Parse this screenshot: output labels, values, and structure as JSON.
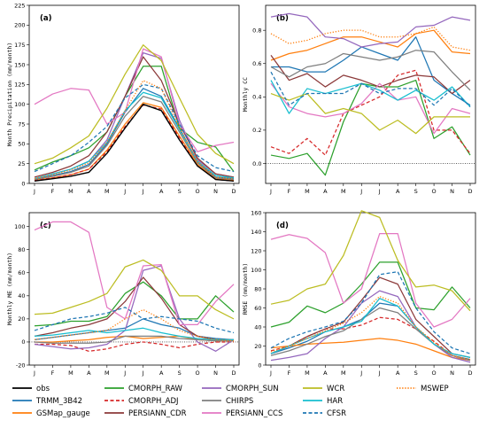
{
  "chart_data": [
    {
      "type": "line",
      "panel_label": "(a)",
      "ylabel": "Month Precipitation (mm/month)",
      "ylim": [
        0,
        225
      ],
      "yticks": [
        0,
        25,
        50,
        75,
        100,
        125,
        150,
        175,
        200,
        225
      ],
      "categories": [
        "J",
        "F",
        "M",
        "A",
        "M",
        "J",
        "J",
        "A",
        "S",
        "O",
        "N",
        "D"
      ],
      "series": [
        {
          "name": "obs",
          "values": [
            3,
            6,
            9,
            14,
            38,
            70,
            100,
            92,
            55,
            22,
            5,
            3
          ]
        },
        {
          "name": "TRMM_3B42",
          "values": [
            5,
            10,
            15,
            24,
            50,
            90,
            120,
            110,
            70,
            28,
            8,
            6
          ]
        },
        {
          "name": "GSMap_gauge",
          "values": [
            4,
            7,
            11,
            18,
            42,
            75,
            102,
            96,
            60,
            24,
            6,
            4
          ]
        },
        {
          "name": "CMORPH_RAW",
          "values": [
            17,
            27,
            35,
            45,
            65,
            110,
            148,
            148,
            70,
            52,
            46,
            15
          ]
        },
        {
          "name": "CMORPH_ADJ",
          "values": [
            4,
            7,
            11,
            18,
            40,
            72,
            99,
            94,
            58,
            22,
            5,
            3
          ]
        },
        {
          "name": "CMORPH_SUN",
          "values": [
            6,
            12,
            18,
            28,
            55,
            110,
            165,
            158,
            80,
            30,
            12,
            8
          ]
        },
        {
          "name": "PERSIANN_CDR",
          "values": [
            8,
            14,
            22,
            35,
            65,
            110,
            160,
            130,
            75,
            32,
            12,
            8
          ]
        },
        {
          "name": "PERSIANN_CCS",
          "values": [
            100,
            113,
            120,
            118,
            75,
            90,
            170,
            160,
            75,
            40,
            48,
            52
          ]
        },
        {
          "name": "CHIRPS",
          "values": [
            5,
            9,
            14,
            22,
            48,
            85,
            110,
            103,
            65,
            26,
            7,
            5
          ]
        },
        {
          "name": "HAR",
          "values": [
            6,
            12,
            18,
            28,
            52,
            92,
            115,
            108,
            68,
            28,
            10,
            7
          ]
        },
        {
          "name": "WCR",
          "values": [
            25,
            32,
            45,
            60,
            95,
            138,
            175,
            155,
            108,
            62,
            38,
            25
          ]
        },
        {
          "name": "CFSR",
          "values": [
            15,
            25,
            35,
            52,
            72,
            108,
            125,
            120,
            75,
            35,
            20,
            15
          ]
        },
        {
          "name": "MSWEP",
          "values": [
            6,
            11,
            17,
            26,
            52,
            92,
            130,
            120,
            70,
            28,
            8,
            6
          ]
        }
      ]
    },
    {
      "type": "line",
      "panel_label": "(b)",
      "ylabel": "Monthly CC",
      "ylim": [
        -0.12,
        0.95
      ],
      "yticks": [
        0.0,
        0.2,
        0.4,
        0.6,
        0.8
      ],
      "reference_line": 0,
      "categories": [
        "J",
        "F",
        "M",
        "A",
        "M",
        "J",
        "J",
        "A",
        "S",
        "O",
        "N",
        "D"
      ],
      "series": [
        {
          "name": "TRMM_3B42",
          "values": [
            0.58,
            0.58,
            0.55,
            0.55,
            0.62,
            0.7,
            0.66,
            0.62,
            0.76,
            0.5,
            0.42,
            0.35
          ]
        },
        {
          "name": "GSMap_gauge",
          "values": [
            0.62,
            0.66,
            0.68,
            0.72,
            0.76,
            0.76,
            0.73,
            0.7,
            0.78,
            0.8,
            0.67,
            0.66
          ]
        },
        {
          "name": "CMORPH_RAW",
          "values": [
            0.05,
            0.03,
            0.06,
            -0.07,
            0.25,
            0.48,
            0.46,
            0.46,
            0.5,
            0.15,
            0.22,
            0.05
          ]
        },
        {
          "name": "CMORPH_ADJ",
          "values": [
            0.1,
            0.06,
            0.15,
            0.05,
            0.3,
            0.35,
            0.4,
            0.53,
            0.56,
            0.2,
            0.2,
            0.06
          ]
        },
        {
          "name": "CMORPH_SUN",
          "values": [
            0.88,
            0.9,
            0.88,
            0.76,
            0.75,
            0.7,
            0.72,
            0.73,
            0.82,
            0.83,
            0.88,
            0.86
          ]
        },
        {
          "name": "PERSIANN_CDR",
          "values": [
            0.65,
            0.5,
            0.54,
            0.46,
            0.53,
            0.5,
            0.46,
            0.5,
            0.53,
            0.52,
            0.42,
            0.5
          ]
        },
        {
          "name": "PERSIANN_CCS",
          "values": [
            0.48,
            0.34,
            0.3,
            0.28,
            0.3,
            0.36,
            0.48,
            0.38,
            0.4,
            0.18,
            0.33,
            0.3
          ]
        },
        {
          "name": "CHIRPS",
          "values": [
            0.58,
            0.52,
            0.58,
            0.6,
            0.66,
            0.64,
            0.62,
            0.64,
            0.68,
            0.67,
            0.55,
            0.44
          ]
        },
        {
          "name": "HAR",
          "values": [
            0.5,
            0.3,
            0.45,
            0.42,
            0.45,
            0.48,
            0.44,
            0.38,
            0.44,
            0.38,
            0.46,
            0.34
          ]
        },
        {
          "name": "WCR",
          "values": [
            0.42,
            0.38,
            0.42,
            0.3,
            0.33,
            0.3,
            0.2,
            0.26,
            0.18,
            0.28,
            0.28,
            0.28
          ]
        },
        {
          "name": "CFSR",
          "values": [
            0.55,
            0.35,
            0.42,
            0.42,
            0.42,
            0.48,
            0.42,
            0.45,
            0.45,
            0.35,
            0.45,
            0.34
          ]
        },
        {
          "name": "MSWEP",
          "values": [
            0.78,
            0.72,
            0.74,
            0.78,
            0.8,
            0.8,
            0.76,
            0.76,
            0.78,
            0.82,
            0.7,
            0.68
          ]
        }
      ]
    },
    {
      "type": "line",
      "panel_label": "(c)",
      "ylabel": "Monthly ME (mm/month)",
      "ylim": [
        -20,
        112
      ],
      "yticks": [
        -20,
        0,
        20,
        40,
        60,
        80,
        100
      ],
      "reference_line": 0,
      "categories": [
        "J",
        "F",
        "M",
        "A",
        "M",
        "J",
        "J",
        "A",
        "S",
        "O",
        "N",
        "D"
      ],
      "series": [
        {
          "name": "TRMM_3B42",
          "values": [
            2,
            4,
            6,
            8,
            10,
            12,
            20,
            15,
            12,
            5,
            3,
            2
          ]
        },
        {
          "name": "GSMap_gauge",
          "values": [
            0,
            0,
            1,
            2,
            4,
            5,
            3,
            4,
            5,
            2,
            1,
            1
          ]
        },
        {
          "name": "CMORPH_RAW",
          "values": [
            14,
            15,
            18,
            18,
            22,
            42,
            52,
            40,
            20,
            20,
            40,
            26
          ]
        },
        {
          "name": "CMORPH_ADJ",
          "values": [
            -2,
            -2,
            -3,
            -8,
            -6,
            -2,
            0,
            -2,
            -5,
            -2,
            0,
            0
          ]
        },
        {
          "name": "CMORPH_SUN",
          "values": [
            -2,
            -4,
            -6,
            -5,
            -2,
            10,
            62,
            66,
            20,
            0,
            -8,
            2
          ]
        },
        {
          "name": "PERSIANN_CDR",
          "values": [
            5,
            8,
            12,
            15,
            20,
            35,
            56,
            38,
            15,
            5,
            2,
            2
          ]
        },
        {
          "name": "PERSIANN_CCS",
          "values": [
            97,
            104,
            104,
            95,
            30,
            20,
            66,
            67,
            15,
            15,
            35,
            50
          ]
        },
        {
          "name": "CHIRPS",
          "values": [
            0,
            -1,
            -1,
            -1,
            0,
            5,
            5,
            5,
            3,
            2,
            1,
            1
          ]
        },
        {
          "name": "HAR",
          "values": [
            5,
            6,
            8,
            10,
            8,
            10,
            12,
            8,
            5,
            3,
            2,
            2
          ]
        },
        {
          "name": "WCR",
          "values": [
            24,
            25,
            30,
            35,
            42,
            65,
            71,
            62,
            40,
            40,
            28,
            20
          ]
        },
        {
          "name": "CFSR",
          "values": [
            10,
            15,
            20,
            22,
            25,
            30,
            20,
            22,
            20,
            18,
            12,
            8
          ]
        },
        {
          "name": "MSWEP",
          "values": [
            2,
            4,
            6,
            8,
            10,
            20,
            28,
            20,
            10,
            5,
            2,
            1
          ]
        }
      ]
    },
    {
      "type": "line",
      "panel_label": "(d)",
      "ylabel": "RMSE (mm/month)",
      "ylim": [
        0,
        160
      ],
      "yticks": [
        0,
        20,
        40,
        60,
        80,
        100,
        120,
        140,
        160
      ],
      "categories": [
        "J",
        "F",
        "M",
        "A",
        "M",
        "J",
        "J",
        "A",
        "S",
        "O",
        "N",
        "D"
      ],
      "series": [
        {
          "name": "TRMM_3B42",
          "values": [
            12,
            18,
            25,
            35,
            40,
            48,
            65,
            62,
            40,
            22,
            10,
            6
          ]
        },
        {
          "name": "GSMap_gauge",
          "values": [
            18,
            20,
            22,
            23,
            24,
            26,
            28,
            26,
            22,
            15,
            8,
            5
          ]
        },
        {
          "name": "CMORPH_RAW",
          "values": [
            40,
            45,
            62,
            55,
            65,
            85,
            108,
            108,
            60,
            58,
            82,
            60
          ]
        },
        {
          "name": "CMORPH_ADJ",
          "values": [
            15,
            20,
            30,
            38,
            38,
            42,
            50,
            48,
            38,
            25,
            10,
            5
          ]
        },
        {
          "name": "CMORPH_SUN",
          "values": [
            5,
            8,
            12,
            28,
            40,
            65,
            78,
            72,
            40,
            22,
            8,
            3
          ]
        },
        {
          "name": "PERSIANN_CDR",
          "values": [
            12,
            20,
            30,
            38,
            45,
            68,
            92,
            85,
            48,
            30,
            12,
            8
          ]
        },
        {
          "name": "PERSIANN_CCS",
          "values": [
            132,
            137,
            133,
            118,
            65,
            80,
            138,
            138,
            65,
            40,
            48,
            70
          ]
        },
        {
          "name": "CHIRPS",
          "values": [
            10,
            15,
            22,
            30,
            36,
            48,
            60,
            55,
            38,
            22,
            10,
            5
          ]
        },
        {
          "name": "HAR",
          "values": [
            12,
            20,
            28,
            35,
            40,
            46,
            70,
            62,
            40,
            22,
            12,
            8
          ]
        },
        {
          "name": "WCR",
          "values": [
            64,
            68,
            80,
            85,
            115,
            162,
            155,
            110,
            82,
            84,
            78,
            57
          ]
        },
        {
          "name": "CFSR",
          "values": [
            18,
            28,
            35,
            40,
            46,
            65,
            95,
            98,
            60,
            35,
            18,
            12
          ]
        },
        {
          "name": "MSWEP",
          "values": [
            14,
            20,
            28,
            36,
            44,
            55,
            72,
            65,
            40,
            24,
            10,
            6
          ]
        }
      ]
    }
  ],
  "legend": [
    {
      "name": "obs",
      "color": "#000000",
      "dash": false
    },
    {
      "name": "TRMM_3B42",
      "color": "#1f77b4",
      "dash": false
    },
    {
      "name": "GSMap_gauge",
      "color": "#ff7f0e",
      "dash": false
    },
    {
      "name": "CMORPH_RAW",
      "color": "#2ca02c",
      "dash": false
    },
    {
      "name": "CMORPH_ADJ",
      "color": "#d62728",
      "dash": true
    },
    {
      "name": "PERSIANN_CDR",
      "color": "#8c3a3a",
      "dash": false
    },
    {
      "name": "CMORPH_SUN",
      "color": "#9467bd",
      "dash": false
    },
    {
      "name": "CHIRPS",
      "color": "#7f7f7f",
      "dash": false
    },
    {
      "name": "PERSIANN_CCS",
      "color": "#e377c2",
      "dash": false
    },
    {
      "name": "WCR",
      "color": "#bcbd22",
      "dash": false
    },
    {
      "name": "HAR",
      "color": "#17becf",
      "dash": false
    },
    {
      "name": "CFSR",
      "color": "#1f77b4",
      "dash": true
    },
    {
      "name": "MSWEP",
      "color": "#ff7f0e",
      "dash": "dot"
    }
  ]
}
